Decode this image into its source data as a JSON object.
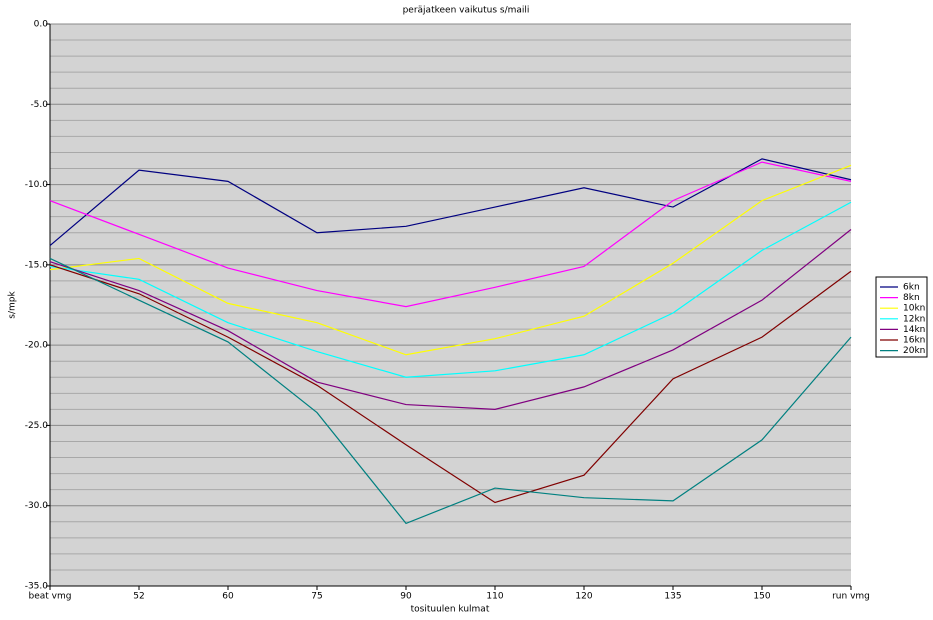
{
  "chart_data": {
    "type": "line",
    "title": "peräjatkeen vaikutus s/maili",
    "x_label": "tosituulen kulmat",
    "y_label": "s/mpk",
    "categories": [
      "beat vmg",
      "52",
      "60",
      "75",
      "90",
      "110",
      "120",
      "135",
      "150",
      "run vmg"
    ],
    "series": [
      {
        "name": "6kn",
        "color": "#000080",
        "values": [
          -13.8,
          -9.1,
          -9.8,
          -13.0,
          -12.6,
          -11.4,
          -10.2,
          -11.4,
          -8.4,
          -9.7
        ]
      },
      {
        "name": "8kn",
        "color": "#ff00ff",
        "values": [
          -11.0,
          -13.1,
          -15.2,
          -16.6,
          -17.6,
          -16.4,
          -15.1,
          -11.0,
          -8.6,
          -9.8
        ]
      },
      {
        "name": "10kn",
        "color": "#ffff00",
        "values": [
          -15.3,
          -14.6,
          -17.4,
          -18.6,
          -20.6,
          -19.6,
          -18.2,
          -14.9,
          -11.0,
          -8.8
        ]
      },
      {
        "name": "12kn",
        "color": "#00ffff",
        "values": [
          -15.1,
          -15.9,
          -18.6,
          -20.4,
          -22.0,
          -21.6,
          -20.6,
          -18.0,
          -14.1,
          -11.1
        ]
      },
      {
        "name": "14kn",
        "color": "#800080",
        "values": [
          -14.8,
          -16.6,
          -19.1,
          -22.3,
          -23.7,
          -24.0,
          -22.6,
          -20.3,
          -17.2,
          -12.8
        ]
      },
      {
        "name": "16kn",
        "color": "#800000",
        "values": [
          -15.0,
          -16.8,
          -19.5,
          -22.5,
          -26.2,
          -29.8,
          -28.1,
          -22.1,
          -19.5,
          -15.4
        ]
      },
      {
        "name": "20kn",
        "color": "#008080",
        "values": [
          -14.6,
          -17.2,
          -19.8,
          -24.2,
          -31.1,
          -28.9,
          -29.5,
          -29.7,
          -25.9,
          -19.5
        ]
      }
    ],
    "ylim": [
      -35,
      0
    ],
    "yticks": [
      {
        "value": 0,
        "label": "0.0"
      },
      {
        "value": -5,
        "label": "-5.0"
      },
      {
        "value": -10,
        "label": "-10.0"
      },
      {
        "value": -15,
        "label": "-15.0"
      },
      {
        "value": -20,
        "label": "-20.0"
      },
      {
        "value": -25,
        "label": "-25.0"
      },
      {
        "value": -30,
        "label": "-30.0"
      },
      {
        "value": -35,
        "label": "-35.0"
      }
    ],
    "y_minor_ticks": [
      -1,
      -2,
      -3,
      -4,
      -6,
      -7,
      -8,
      -9,
      -11,
      -12,
      -13,
      -14,
      -16,
      -17,
      -18,
      -19,
      -21,
      -22,
      -23,
      -24,
      -26,
      -27,
      -28,
      -29,
      -31,
      -32,
      -33,
      -34
    ],
    "grid": true,
    "legend": "right"
  }
}
